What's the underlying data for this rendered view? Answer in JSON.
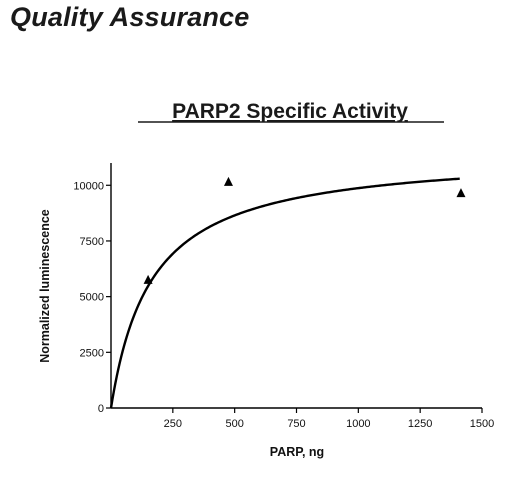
{
  "page": {
    "heading": "Quality Assurance"
  },
  "chart_data": {
    "type": "scatter",
    "title": "PARP2 Specific Activity",
    "xlabel": "PARP, ng",
    "ylabel": "Normalized luminescence",
    "xlim": [
      0,
      1500
    ],
    "ylim": [
      0,
      11000
    ],
    "x_ticks": [
      250,
      500,
      750,
      1000,
      1250,
      1500
    ],
    "y_ticks": [
      0,
      2500,
      5000,
      7500,
      10000
    ],
    "grid": false,
    "legend": "none",
    "series": [
      {
        "marker": "triangle",
        "x": [
          150,
          475,
          1415
        ],
        "y": [
          5750,
          10150,
          9650
        ]
      }
    ],
    "fit_curve": {
      "model": "hyperbolic",
      "vmax": 11500,
      "km": 165,
      "x_range": [
        0,
        1410
      ]
    },
    "colors": {
      "line": "#000000",
      "marker": "#000000"
    }
  }
}
